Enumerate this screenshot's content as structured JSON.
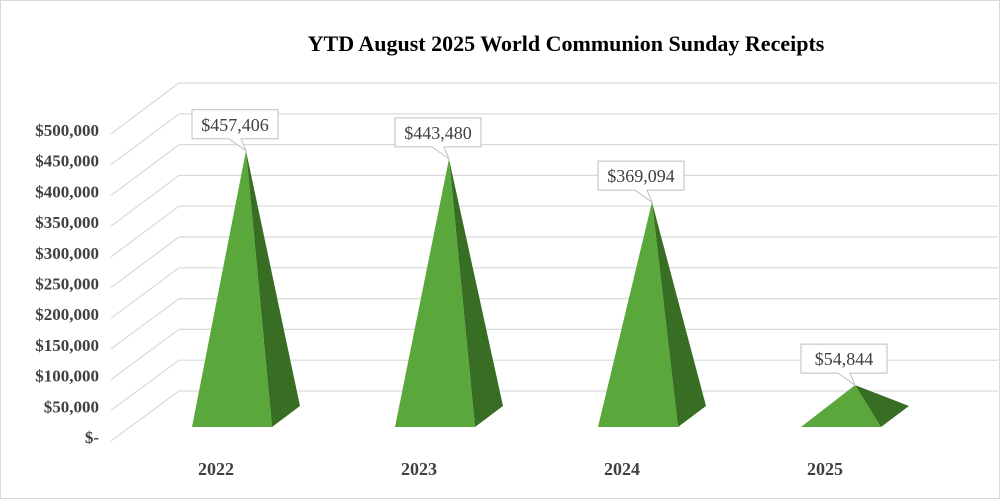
{
  "chart_data": {
    "type": "bar",
    "style": "3d-pyramid",
    "title": "YTD August 2025 World Communion Sunday Receipts",
    "categories": [
      "2022",
      "2023",
      "2024",
      "2025"
    ],
    "values": [
      457406,
      443480,
      369094,
      54844
    ],
    "data_labels": [
      "$457,406",
      "$443,480",
      "$369,094",
      "$54,844"
    ],
    "ylim": [
      0,
      500000
    ],
    "yticks": [
      0,
      50000,
      100000,
      150000,
      200000,
      250000,
      300000,
      350000,
      400000,
      450000,
      500000
    ],
    "ytick_labels": [
      "$-",
      "$50,000",
      "$100,000",
      "$150,000",
      "$200,000",
      "$250,000",
      "$300,000",
      "$350,000",
      "$400,000",
      "$450,000",
      "$500,000"
    ],
    "grid": true,
    "legend": "none",
    "colors": {
      "front": "#5aa73c",
      "side": "#386e24",
      "grid": "#d9d9d9"
    }
  }
}
